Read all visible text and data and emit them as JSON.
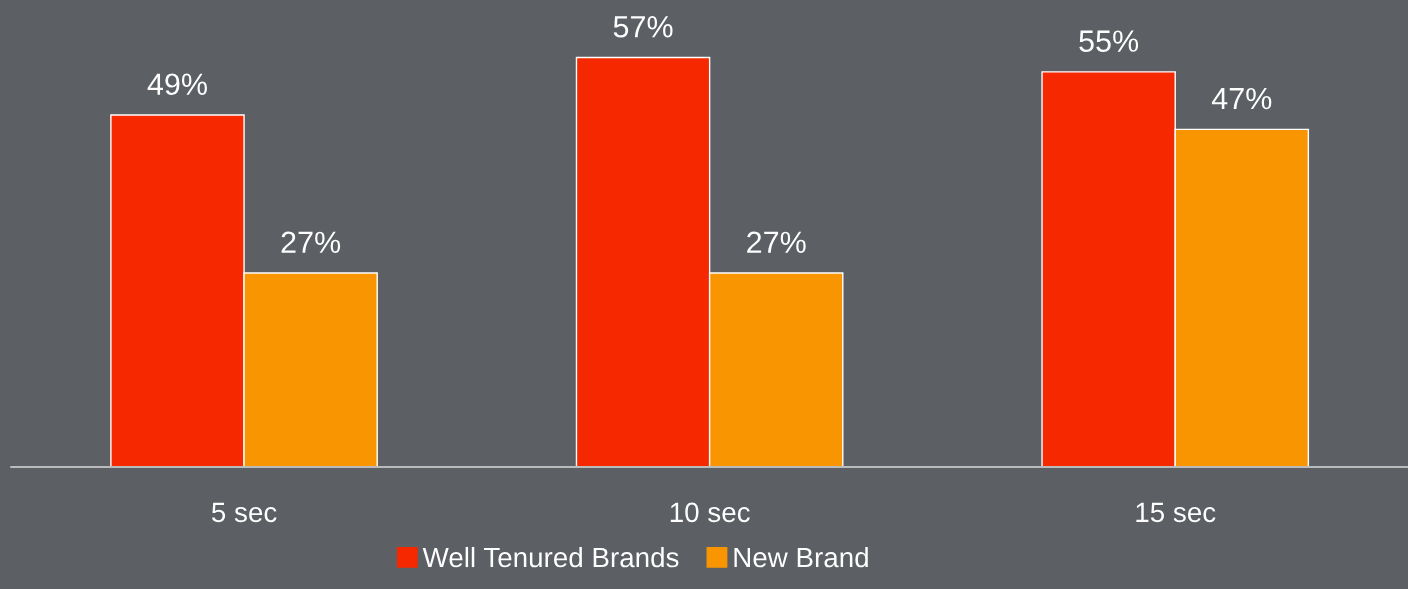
{
  "chart_data": {
    "type": "bar",
    "categories": [
      "5 sec",
      "10 sec",
      "15 sec"
    ],
    "series": [
      {
        "name": "Well Tenured Brands",
        "color": "#f52800",
        "values": [
          49,
          57,
          55
        ],
        "value_labels": [
          "49%",
          "57%",
          "55%"
        ]
      },
      {
        "name": "New Brand",
        "color": "#f99500",
        "values": [
          27,
          27,
          47
        ],
        "value_labels": [
          "27%",
          "27%",
          "47%"
        ]
      }
    ],
    "ylim": [
      0,
      65
    ],
    "tick_labels": "x",
    "grid": false,
    "legend": "bottom"
  }
}
